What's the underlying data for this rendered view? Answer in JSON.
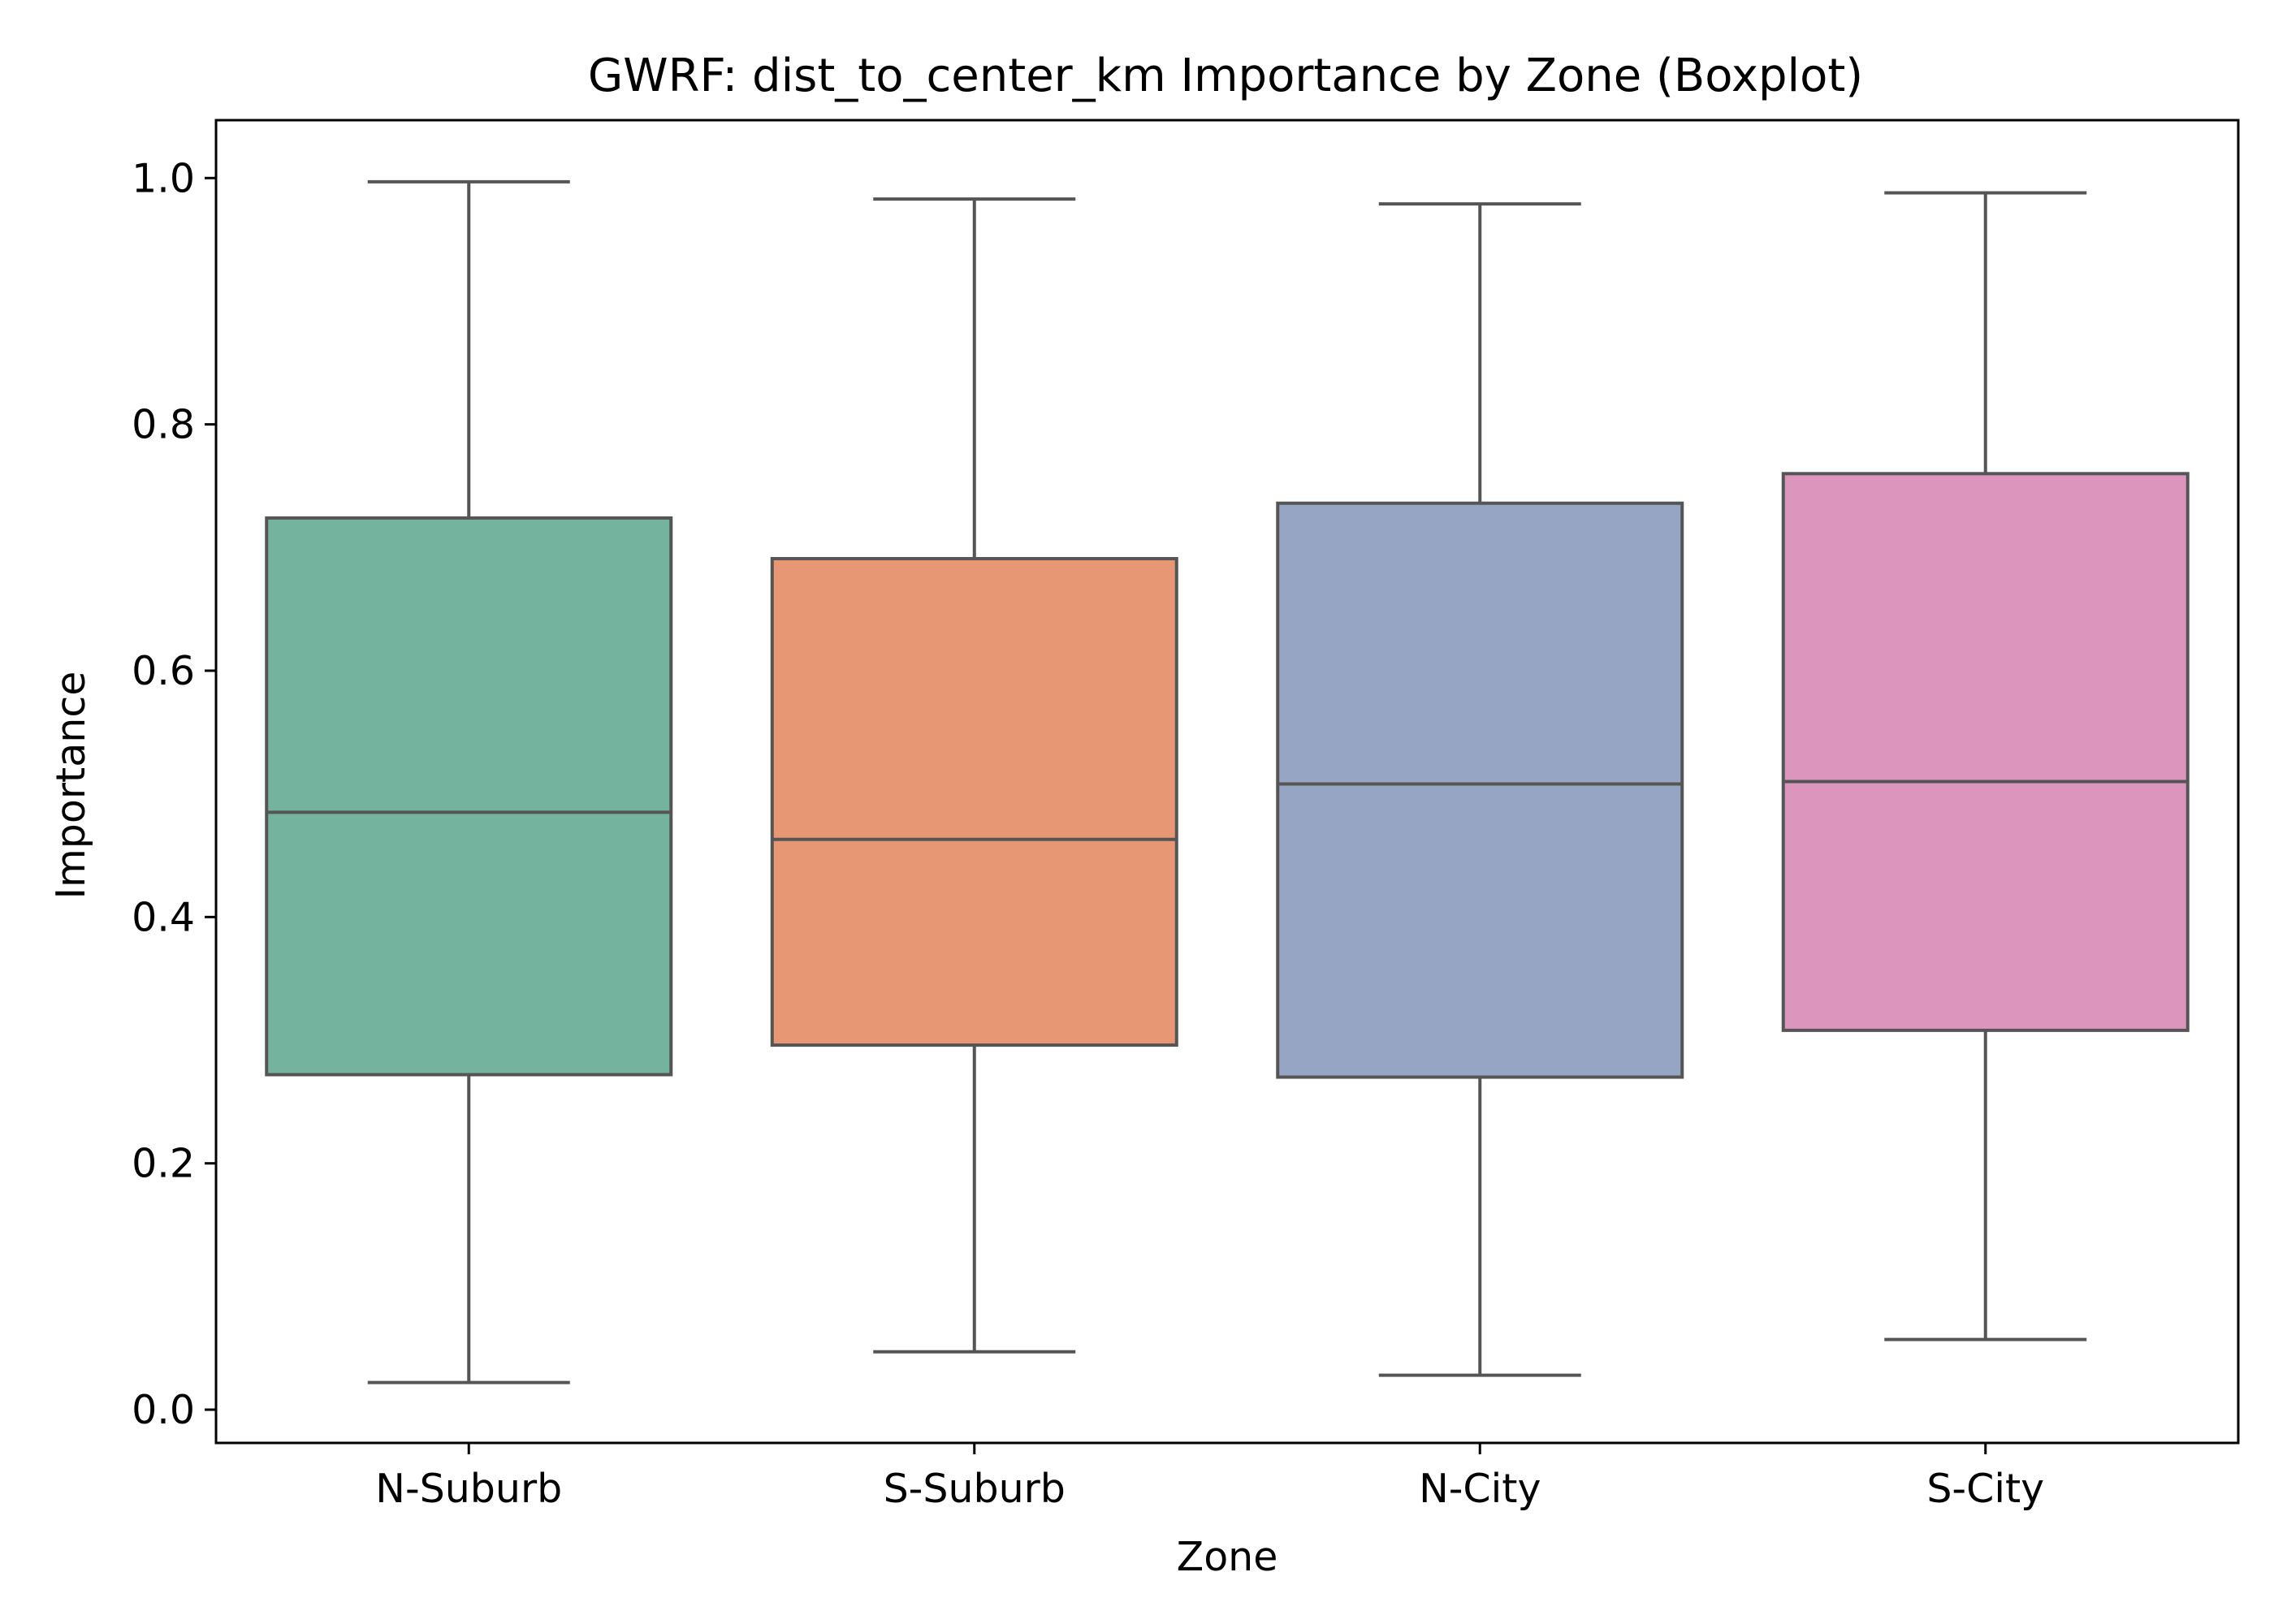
{
  "chart_data": {
    "type": "boxplot",
    "title": "GWRF: dist_to_center_km Importance by Zone (Boxplot)",
    "xlabel": "Zone",
    "ylabel": "Importance",
    "ylim": [
      -0.027,
      1.047
    ],
    "yticks": [
      0.0,
      0.2,
      0.4,
      0.6,
      0.8,
      1.0
    ],
    "ytick_labels": [
      "0.0",
      "0.2",
      "0.4",
      "0.6",
      "0.8",
      "1.0"
    ],
    "grid": false,
    "legend": "none",
    "categories": [
      "N-Suburb",
      "S-Suburb",
      "N-City",
      "S-City"
    ],
    "boxes": [
      {
        "category": "N-Suburb",
        "whisker_low": 0.022,
        "q1": 0.272,
        "median": 0.485,
        "q3": 0.724,
        "whisker_high": 0.997,
        "color": "#74b49f"
      },
      {
        "category": "S-Suburb",
        "whisker_low": 0.047,
        "q1": 0.296,
        "median": 0.463,
        "q3": 0.691,
        "whisker_high": 0.983,
        "color": "#e79774"
      },
      {
        "category": "N-City",
        "whisker_low": 0.028,
        "q1": 0.27,
        "median": 0.508,
        "q3": 0.736,
        "whisker_high": 0.979,
        "color": "#96a5c4"
      },
      {
        "category": "S-City",
        "whisker_low": 0.057,
        "q1": 0.308,
        "median": 0.51,
        "q3": 0.76,
        "whisker_high": 0.988,
        "color": "#dc96bd"
      }
    ],
    "line_color": "#555555"
  }
}
